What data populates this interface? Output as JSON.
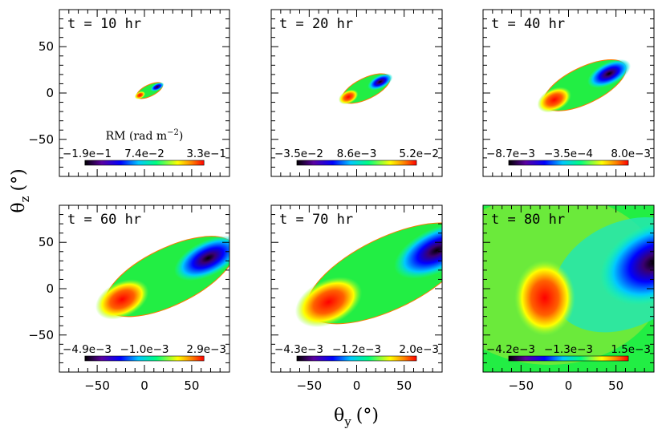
{
  "chart_data": {
    "type": "heatmap",
    "xlabel": {
      "symbol": "θ",
      "subscript": "y",
      "unit": "(°)"
    },
    "ylabel": {
      "symbol": "θ",
      "subscript": "z",
      "unit": "(°)"
    },
    "xlim": [
      -90,
      90
    ],
    "ylim": [
      -90,
      90
    ],
    "xticks": [
      -50,
      0,
      50
    ],
    "yticks": [
      -50,
      0,
      50
    ],
    "x_tick_labels": [
      "−50",
      "0",
      "50"
    ],
    "y_tick_labels": [
      "−50",
      "0",
      "50"
    ],
    "colorbar_title": "RM (rad m",
    "colorbar_title_exponent": "−2",
    "colorbar_title_close": ")",
    "colormap": [
      "#000000",
      "#5a00a0",
      "#0000ff",
      "#00c8ff",
      "#00ff80",
      "#ffff00",
      "#ff8000",
      "#ff0000"
    ],
    "panels": [
      {
        "time_label": "t = 10 hr",
        "colorbar_ticks": [
          "−1.9e−1",
          "7.4e−2",
          "3.3e−1"
        ],
        "extent_deg": 12,
        "background_fill": false
      },
      {
        "time_label": "t = 20 hr",
        "colorbar_ticks": [
          "−3.5e−2",
          "8.6e−3",
          "5.2e−2"
        ],
        "extent_deg": 22,
        "background_fill": false
      },
      {
        "time_label": "t = 40 hr",
        "colorbar_ticks": [
          "−8.7e−3",
          "−3.5e−4",
          "8.0e−3"
        ],
        "extent_deg": 38,
        "background_fill": false
      },
      {
        "time_label": "t = 60 hr",
        "colorbar_ticks": [
          "−4.9e−3",
          "−1.0e−3",
          "2.9e−3"
        ],
        "extent_deg": 60,
        "background_fill": false
      },
      {
        "time_label": "t = 70 hr",
        "colorbar_ticks": [
          "−4.3e−3",
          "−1.2e−3",
          "2.0e−3"
        ],
        "extent_deg": 75,
        "background_fill": false
      },
      {
        "time_label": "t = 80 hr",
        "colorbar_ticks": [
          "−4.2e−3",
          "−1.3e−3",
          "1.5e−3"
        ],
        "extent_deg": 120,
        "background_fill": true
      }
    ]
  }
}
